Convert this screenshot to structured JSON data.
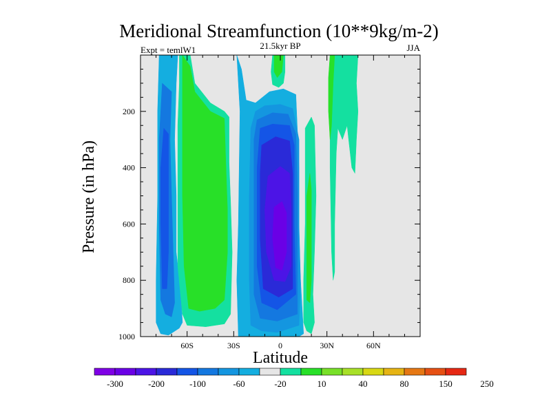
{
  "chart_data": {
    "type": "heatmap",
    "title": "Meridional Streamfunction (10**9kg/m-2)",
    "subtitle_left": "Expt = temlW1",
    "subtitle_center": "21.5kyr BP",
    "subtitle_right": "JJA",
    "xlabel": "Latitude",
    "ylabel": "Pressure (in hPa)",
    "xlim": [
      -90,
      90
    ],
    "ylim": [
      0,
      1000
    ],
    "y_inverted": true,
    "x_ticks": [
      {
        "value": -60,
        "label": "60S"
      },
      {
        "value": -30,
        "label": "30S"
      },
      {
        "value": 0,
        "label": "0"
      },
      {
        "value": 30,
        "label": "30N"
      },
      {
        "value": 60,
        "label": "60N"
      }
    ],
    "y_ticks": [
      {
        "value": 200,
        "label": "200"
      },
      {
        "value": 400,
        "label": "400"
      },
      {
        "value": 600,
        "label": "600"
      },
      {
        "value": 800,
        "label": "800"
      },
      {
        "value": 1000,
        "label": "1000"
      }
    ],
    "background_color": "#e6e6e6",
    "colorbar": {
      "colors": [
        "#7f00e6",
        "#6a00e6",
        "#4c14e6",
        "#2a2ad8",
        "#1455e6",
        "#1478e0",
        "#1496e0",
        "#14aee0",
        "#e6e6e6",
        "#14e0a0",
        "#28e028",
        "#78e028",
        "#a8e028",
        "#d8d814",
        "#e6b414",
        "#e67814",
        "#e65014",
        "#e62814"
      ],
      "labels": [
        "-300",
        "-200",
        "-100",
        "-60",
        "-20",
        "10",
        "40",
        "80",
        "150",
        "250"
      ]
    },
    "contours": [
      {
        "name": "sh-cell-outer",
        "value": -20,
        "color": "#14aee0",
        "points": [
          [
            -78,
            0
          ],
          [
            -66,
            0
          ],
          [
            -67,
            100
          ],
          [
            -68,
            300
          ],
          [
            -67,
            500
          ],
          [
            -67,
            700
          ],
          [
            -64,
            850
          ],
          [
            -63,
            950
          ],
          [
            -65,
            970
          ],
          [
            -72,
            995
          ],
          [
            -77,
            990
          ],
          [
            -80,
            950
          ],
          [
            -80,
            800
          ],
          [
            -79,
            500
          ],
          [
            -79,
            200
          ]
        ]
      },
      {
        "name": "sh-cell-mid",
        "value": -60,
        "color": "#1478e0",
        "points": [
          [
            -76,
            100
          ],
          [
            -70,
            130
          ],
          [
            -71,
            300
          ],
          [
            -70,
            500
          ],
          [
            -69,
            700
          ],
          [
            -68,
            880
          ],
          [
            -70,
            930
          ],
          [
            -74,
            920
          ],
          [
            -77,
            870
          ],
          [
            -78,
            600
          ],
          [
            -78,
            300
          ]
        ]
      },
      {
        "name": "sh-cell-inner",
        "value": -100,
        "color": "#1455e6",
        "points": [
          [
            -75,
            260
          ],
          [
            -72,
            280
          ],
          [
            -72,
            500
          ],
          [
            -72,
            700
          ],
          [
            -73,
            830
          ],
          [
            -76,
            830
          ],
          [
            -77,
            600
          ],
          [
            -77,
            400
          ]
        ]
      },
      {
        "name": "hadley-outer",
        "value": -20,
        "color": "#14aee0",
        "points": [
          [
            -28,
            0
          ],
          [
            -25,
            50
          ],
          [
            -22,
            160
          ],
          [
            -16,
            170
          ],
          [
            -7,
            130
          ],
          [
            2,
            120
          ],
          [
            10,
            140
          ],
          [
            12,
            400
          ],
          [
            12,
            700
          ],
          [
            15,
            990
          ],
          [
            12,
            1000
          ],
          [
            -27,
            1000
          ],
          [
            -28,
            800
          ],
          [
            -27,
            600
          ],
          [
            -26,
            200
          ]
        ]
      },
      {
        "name": "hadley-l2",
        "value": -60,
        "color": "#1496e0",
        "points": [
          [
            -16,
            200
          ],
          [
            -10,
            180
          ],
          [
            0,
            175
          ],
          [
            8,
            190
          ],
          [
            12,
            300
          ],
          [
            12,
            600
          ],
          [
            13,
            800
          ],
          [
            12,
            960
          ],
          [
            -2,
            985
          ],
          [
            -12,
            980
          ],
          [
            -19,
            960
          ],
          [
            -20,
            800
          ],
          [
            -20,
            500
          ],
          [
            -19,
            260
          ]
        ]
      },
      {
        "name": "hadley-l3",
        "value": -100,
        "color": "#1478e0",
        "points": [
          [
            -15,
            230
          ],
          [
            -5,
            205
          ],
          [
            5,
            210
          ],
          [
            10,
            280
          ],
          [
            11,
            500
          ],
          [
            11,
            800
          ],
          [
            11,
            920
          ],
          [
            -2,
            945
          ],
          [
            -13,
            935
          ],
          [
            -17,
            850
          ],
          [
            -17,
            500
          ],
          [
            -17,
            300
          ]
        ]
      },
      {
        "name": "hadley-l4",
        "value": -200,
        "color": "#1455e6",
        "points": [
          [
            -13,
            260
          ],
          [
            -5,
            245
          ],
          [
            6,
            250
          ],
          [
            9,
            320
          ],
          [
            9,
            600
          ],
          [
            10,
            850
          ],
          [
            -2,
            905
          ],
          [
            -12,
            880
          ],
          [
            -15,
            750
          ],
          [
            -15,
            400
          ]
        ]
      },
      {
        "name": "hadley-l5",
        "value": -200,
        "color": "#2a2ad8",
        "points": [
          [
            -12,
            320
          ],
          [
            -3,
            290
          ],
          [
            6,
            305
          ],
          [
            8,
            420
          ],
          [
            8,
            700
          ],
          [
            8,
            830
          ],
          [
            -1,
            860
          ],
          [
            -11,
            830
          ],
          [
            -13,
            650
          ],
          [
            -13,
            420
          ]
        ]
      },
      {
        "name": "hadley-l6",
        "value": -300,
        "color": "#4c14e6",
        "points": [
          [
            -8,
            430
          ],
          [
            0,
            395
          ],
          [
            6,
            420
          ],
          [
            7,
            550
          ],
          [
            7,
            750
          ],
          [
            3,
            805
          ],
          [
            -4,
            800
          ],
          [
            -9,
            700
          ],
          [
            -10,
            550
          ]
        ]
      },
      {
        "name": "hadley-core",
        "value": -300,
        "color": "#6a00e6",
        "points": [
          [
            -4,
            540
          ],
          [
            1,
            520
          ],
          [
            4,
            560
          ],
          [
            4,
            700
          ],
          [
            1,
            765
          ],
          [
            -3,
            755
          ],
          [
            -5,
            650
          ]
        ]
      },
      {
        "name": "sh-ferrel-outer",
        "value": 10,
        "color": "#14e0a0",
        "points": [
          [
            -65,
            0
          ],
          [
            -58,
            0
          ],
          [
            -55,
            100
          ],
          [
            -45,
            170
          ],
          [
            -36,
            200
          ],
          [
            -33,
            220
          ],
          [
            -33,
            380
          ],
          [
            -32,
            520
          ],
          [
            -31,
            700
          ],
          [
            -32,
            920
          ],
          [
            -36,
            955
          ],
          [
            -48,
            965
          ],
          [
            -60,
            960
          ],
          [
            -63,
            920
          ],
          [
            -66,
            750
          ],
          [
            -66,
            500
          ],
          [
            -66,
            250
          ],
          [
            -65,
            100
          ]
        ]
      },
      {
        "name": "sh-ferrel-core",
        "value": 40,
        "color": "#28e028",
        "points": [
          [
            -63,
            0
          ],
          [
            -58,
            40
          ],
          [
            -55,
            130
          ],
          [
            -45,
            200
          ],
          [
            -36,
            225
          ],
          [
            -35,
            400
          ],
          [
            -34,
            550
          ],
          [
            -34,
            700
          ],
          [
            -36,
            870
          ],
          [
            -42,
            900
          ],
          [
            -52,
            910
          ],
          [
            -59,
            900
          ],
          [
            -62,
            750
          ],
          [
            -63,
            500
          ],
          [
            -63,
            200
          ]
        ]
      },
      {
        "name": "nh-cell-outer",
        "value": 10,
        "color": "#14e0a0",
        "points": [
          [
            16,
            400
          ],
          [
            16,
            260
          ],
          [
            20,
            220
          ],
          [
            22,
            250
          ],
          [
            23,
            500
          ],
          [
            22,
            700
          ],
          [
            21,
            850
          ],
          [
            22,
            950
          ],
          [
            20,
            990
          ],
          [
            17,
            980
          ],
          [
            15,
            950
          ],
          [
            15,
            800
          ],
          [
            16,
            600
          ]
        ]
      },
      {
        "name": "nh-cell-core",
        "value": 40,
        "color": "#28e028",
        "points": [
          [
            17,
            500
          ],
          [
            19,
            420
          ],
          [
            20,
            480
          ],
          [
            20,
            650
          ],
          [
            20,
            800
          ],
          [
            19,
            880
          ],
          [
            17,
            870
          ],
          [
            17,
            700
          ]
        ]
      },
      {
        "name": "upper-blob",
        "value": 10,
        "color": "#14e0a0",
        "points": [
          [
            -5,
            0
          ],
          [
            3,
            0
          ],
          [
            3,
            60
          ],
          [
            2,
            100
          ],
          [
            -1,
            115
          ],
          [
            -5,
            105
          ],
          [
            -6,
            60
          ]
        ]
      },
      {
        "name": "upper-blob-core",
        "value": 40,
        "color": "#28e028",
        "points": [
          [
            -4,
            0
          ],
          [
            2,
            0
          ],
          [
            1,
            60
          ],
          [
            -2,
            80
          ],
          [
            -4,
            60
          ]
        ]
      },
      {
        "name": "nh-top-band",
        "value": 10,
        "color": "#14e0a0",
        "points": [
          [
            32,
            0
          ],
          [
            50,
            0
          ],
          [
            49,
            100
          ],
          [
            50,
            200
          ],
          [
            49,
            300
          ],
          [
            48,
            420
          ],
          [
            46,
            400
          ],
          [
            44,
            300
          ],
          [
            43,
            250
          ],
          [
            40,
            300
          ],
          [
            37,
            260
          ],
          [
            36,
            350
          ],
          [
            35,
            600
          ],
          [
            35,
            770
          ],
          [
            34,
            800
          ],
          [
            33,
            700
          ],
          [
            32,
            400
          ],
          [
            32,
            200
          ]
        ]
      },
      {
        "name": "nh-top-core",
        "value": 40,
        "color": "#28e028",
        "points": [
          [
            32,
            0
          ],
          [
            35,
            0
          ],
          [
            34,
            100
          ],
          [
            33,
            250
          ],
          [
            32,
            300
          ],
          [
            31,
            200
          ],
          [
            31,
            80
          ]
        ]
      }
    ]
  }
}
